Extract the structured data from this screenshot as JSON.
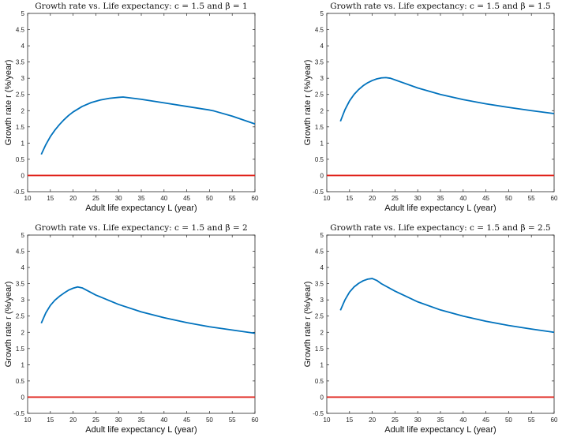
{
  "chart_data": [
    {
      "type": "line",
      "title": "Growth rate vs. Life expectancy: c = 1.5 and β = 1",
      "xlabel": "Adult life expectancy L (year)",
      "ylabel": "Growth rate r (%/year)",
      "xlim": [
        10,
        60
      ],
      "ylim": [
        -0.5,
        5
      ],
      "xticks": [
        10,
        15,
        20,
        25,
        30,
        35,
        40,
        45,
        50,
        55,
        60
      ],
      "yticks": [
        -0.5,
        0,
        0.5,
        1,
        1.5,
        2,
        2.5,
        3,
        3.5,
        4,
        4.5,
        5
      ],
      "series": [
        {
          "name": "growth rate",
          "color": "#0072bd",
          "x": [
            13,
            14,
            15,
            16,
            17,
            18,
            19,
            20,
            22,
            24,
            26,
            28,
            30,
            31,
            35,
            40,
            45,
            50,
            51,
            55,
            60
          ],
          "y": [
            0.65,
            0.95,
            1.2,
            1.4,
            1.57,
            1.72,
            1.85,
            1.96,
            2.13,
            2.25,
            2.33,
            2.38,
            2.41,
            2.42,
            2.35,
            2.24,
            2.13,
            2.02,
            1.99,
            1.83,
            1.59
          ]
        },
        {
          "name": "zero line",
          "color": "#e0231b",
          "x": [
            10,
            60
          ],
          "y": [
            0,
            0
          ]
        }
      ]
    },
    {
      "type": "line",
      "title": "Growth rate vs. Life expectancy: c = 1.5 and β = 1.5",
      "xlabel": "Adult life expectancy L (year)",
      "ylabel": "Growth rate r (%/year)",
      "xlim": [
        10,
        60
      ],
      "ylim": [
        -0.5,
        5
      ],
      "xticks": [
        10,
        15,
        20,
        25,
        30,
        35,
        40,
        45,
        50,
        55,
        60
      ],
      "yticks": [
        -0.5,
        0,
        0.5,
        1,
        1.5,
        2,
        2.5,
        3,
        3.5,
        4,
        4.5,
        5
      ],
      "series": [
        {
          "name": "growth rate",
          "color": "#0072bd",
          "x": [
            13,
            14,
            15,
            16,
            17,
            18,
            19,
            20,
            21,
            22,
            23,
            24,
            25,
            30,
            35,
            40,
            45,
            50,
            55,
            60
          ],
          "y": [
            1.67,
            2.03,
            2.3,
            2.5,
            2.65,
            2.77,
            2.86,
            2.93,
            2.98,
            3.01,
            3.02,
            3.0,
            2.95,
            2.7,
            2.5,
            2.34,
            2.21,
            2.1,
            2.0,
            1.91
          ]
        },
        {
          "name": "zero line",
          "color": "#e0231b",
          "x": [
            10,
            60
          ],
          "y": [
            0,
            0
          ]
        }
      ]
    },
    {
      "type": "line",
      "title": "Growth rate vs. Life expectancy: c = 1.5 and β = 2",
      "xlabel": "Adult life expectancy L (year)",
      "ylabel": "Growth rate r (%/year)",
      "xlim": [
        10,
        60
      ],
      "ylim": [
        -0.5,
        5
      ],
      "xticks": [
        10,
        15,
        20,
        25,
        30,
        35,
        40,
        45,
        50,
        55,
        60
      ],
      "yticks": [
        -0.5,
        0,
        0.5,
        1,
        1.5,
        2,
        2.5,
        3,
        3.5,
        4,
        4.5,
        5
      ],
      "series": [
        {
          "name": "growth rate",
          "color": "#0072bd",
          "x": [
            13,
            14,
            15,
            16,
            17,
            18,
            19,
            20,
            21,
            22,
            25,
            30,
            35,
            40,
            45,
            50,
            55,
            60
          ],
          "y": [
            2.28,
            2.6,
            2.83,
            2.99,
            3.11,
            3.21,
            3.3,
            3.36,
            3.4,
            3.37,
            3.15,
            2.86,
            2.63,
            2.45,
            2.3,
            2.17,
            2.07,
            1.97
          ]
        },
        {
          "name": "zero line",
          "color": "#e0231b",
          "x": [
            10,
            60
          ],
          "y": [
            0,
            0
          ]
        }
      ]
    },
    {
      "type": "line",
      "title": "Growth rate vs. Life expectancy: c = 1.5 and β = 2.5",
      "xlabel": "Adult life expectancy L (year)",
      "ylabel": "Growth rate r (%/year)",
      "xlim": [
        10,
        60
      ],
      "ylim": [
        -0.5,
        5
      ],
      "xticks": [
        10,
        15,
        20,
        25,
        30,
        35,
        40,
        45,
        50,
        55,
        60
      ],
      "yticks": [
        -0.5,
        0,
        0.5,
        1,
        1.5,
        2,
        2.5,
        3,
        3.5,
        4,
        4.5,
        5
      ],
      "series": [
        {
          "name": "growth rate",
          "color": "#0072bd",
          "x": [
            13,
            14,
            15,
            16,
            17,
            18,
            19,
            20,
            21,
            22,
            25,
            30,
            35,
            40,
            45,
            50,
            55,
            60
          ],
          "y": [
            2.68,
            3.0,
            3.24,
            3.4,
            3.51,
            3.59,
            3.64,
            3.66,
            3.6,
            3.5,
            3.27,
            2.94,
            2.69,
            2.5,
            2.34,
            2.21,
            2.1,
            2.0
          ]
        },
        {
          "name": "zero line",
          "color": "#e0231b",
          "x": [
            10,
            60
          ],
          "y": [
            0,
            0
          ]
        }
      ]
    }
  ]
}
